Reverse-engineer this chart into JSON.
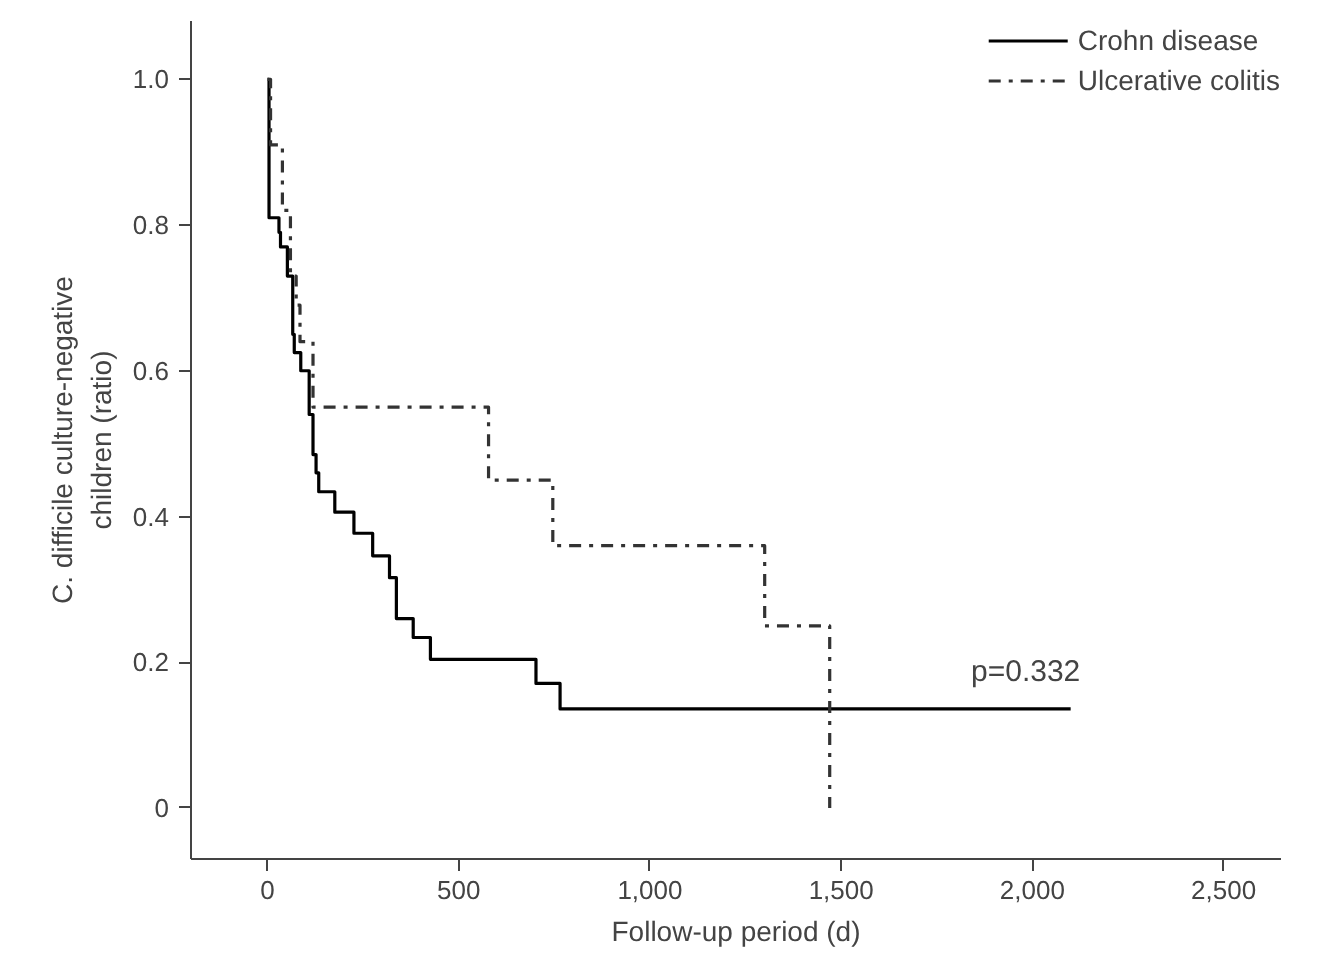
{
  "chart_data": {
    "type": "step",
    "xlabel": "Follow-up period (d)",
    "ylabel": "C. difficile culture-negative\nchildren (ratio)",
    "series": [
      {
        "name": "Crohn disease",
        "color": "#000000",
        "line_style": "solid",
        "x": [
          0,
          4,
          30,
          34,
          52,
          66,
          70,
          87,
          109,
          119,
          127,
          134,
          176,
          226,
          275,
          319,
          337,
          381,
          426,
          702,
          765,
          790,
          2100
        ],
        "values": [
          1.0,
          0.81,
          0.79,
          0.77,
          0.73,
          0.65,
          0.625,
          0.6,
          0.54,
          0.485,
          0.46,
          0.434,
          0.406,
          0.377,
          0.346,
          0.316,
          0.26,
          0.234,
          0.204,
          0.171,
          0.136,
          0.136,
          0.136
        ]
      },
      {
        "name": "Ulcerative colitis",
        "color": "#333333",
        "line_style": "dashdot",
        "x": [
          0,
          8,
          39,
          60,
          75,
          85,
          119,
          578,
          746,
          1300,
          1470
        ],
        "values": [
          1.0,
          0.91,
          0.82,
          0.73,
          0.69,
          0.64,
          0.55,
          0.45,
          0.36,
          0.25,
          0.0
        ]
      }
    ],
    "annotations": [
      "p=0.332"
    ],
    "xlim": [
      -200,
      2650
    ],
    "ylim": [
      -0.07,
      1.08
    ],
    "xticks": [
      0,
      500,
      {
        "value": 1000,
        "label": "1,000"
      },
      {
        "value": 1500,
        "label": "1,500"
      },
      {
        "value": 2000,
        "label": "2,000"
      },
      {
        "value": 2500,
        "label": "2,500"
      }
    ],
    "yticks": [
      0,
      0.2,
      0.4,
      0.6,
      0.8,
      {
        "value": 1,
        "label": "1.0"
      }
    ],
    "grid": false,
    "legend": "top right"
  }
}
